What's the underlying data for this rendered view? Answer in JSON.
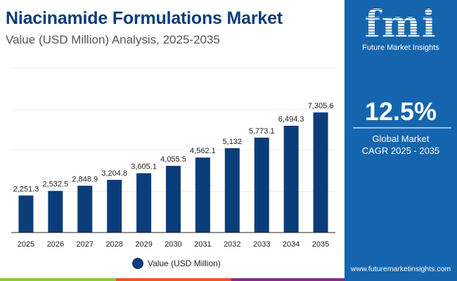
{
  "header": {
    "title": "Niacinamide Formulations Market",
    "subtitle": "Value (USD Million) Analysis, 2025-2035"
  },
  "side_panel": {
    "brand": "Future Market Insights",
    "logo_text": "fmi",
    "cagr": "12.5%",
    "label_line1": "Global Market",
    "label_line2": "CAGR 2025 - 2035",
    "url": "www.futuremarketinsights.com",
    "background": "#1565ae"
  },
  "stripe_colors": [
    "#8dc63f",
    "#e8562a",
    "#8a2a8c"
  ],
  "chart_data": {
    "type": "bar",
    "title": "",
    "xlabel": "",
    "ylabel": "",
    "categories": [
      "2025",
      "2026",
      "2027",
      "2028",
      "2029",
      "2030",
      "2031",
      "2032",
      "2033",
      "2034",
      "2035"
    ],
    "series": [
      {
        "name": "Value (USD Million)",
        "values": [
          2251.3,
          2532.5,
          2848.9,
          3204.8,
          3605.1,
          4055.5,
          4562.1,
          5132,
          5773.1,
          6494.3,
          7305.6
        ],
        "color": "#0b3d7a"
      }
    ],
    "data_labels": [
      "2,251.3",
      "2,532.5",
      "2,848.9",
      "3,204.8",
      "3,605.1",
      "4,055.5",
      "4,562.1",
      "5,132",
      "5,773.1",
      "6,494.3",
      "7,305.6"
    ],
    "ylim": [
      0,
      10000
    ],
    "grid": true,
    "legend": "bottom-center"
  }
}
